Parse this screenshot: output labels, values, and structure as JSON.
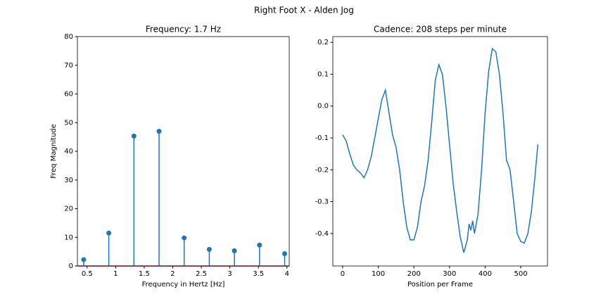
{
  "title": "Right Foot X - Alden Jog",
  "chart_data": [
    {
      "type": "stem",
      "title": "Frequency: 1.7 Hz",
      "xlabel": "Frequency in Hertz [Hz]",
      "ylabel": "Freq Magnitude",
      "x": [
        0.44,
        0.88,
        1.32,
        1.76,
        2.2,
        2.64,
        3.08,
        3.52,
        3.96
      ],
      "values": [
        2.2,
        11.5,
        45.3,
        47.0,
        9.8,
        5.8,
        5.3,
        7.3,
        4.3
      ],
      "color": "#1f77b4",
      "baseline_color": "#d62728",
      "xlim": [
        0.33,
        4.04
      ],
      "xticks": [
        0.5,
        1.0,
        1.5,
        2.0,
        2.5,
        3.0,
        3.5,
        4.0
      ],
      "ylim": [
        0,
        80
      ],
      "yticks": [
        0,
        10,
        20,
        30,
        40,
        50,
        60,
        70,
        80
      ]
    },
    {
      "type": "line",
      "title": "Cadence: 208 steps per minute",
      "xlabel": "Position per Frame",
      "x": [
        0,
        10,
        20,
        30,
        40,
        50,
        60,
        70,
        80,
        90,
        100,
        110,
        120,
        130,
        140,
        150,
        160,
        170,
        180,
        190,
        200,
        210,
        220,
        230,
        240,
        250,
        260,
        270,
        280,
        290,
        300,
        310,
        320,
        330,
        340,
        350,
        355,
        360,
        365,
        370,
        380,
        390,
        400,
        410,
        420,
        430,
        440,
        450,
        460,
        470,
        480,
        490,
        500,
        510,
        520,
        530,
        540,
        548
      ],
      "values": [
        -0.09,
        -0.11,
        -0.15,
        -0.185,
        -0.2,
        -0.21,
        -0.225,
        -0.2,
        -0.16,
        -0.1,
        -0.04,
        0.02,
        0.05,
        -0.02,
        -0.09,
        -0.13,
        -0.2,
        -0.3,
        -0.38,
        -0.42,
        -0.42,
        -0.38,
        -0.3,
        -0.25,
        -0.17,
        -0.05,
        0.08,
        0.13,
        0.1,
        0.0,
        -0.12,
        -0.24,
        -0.33,
        -0.41,
        -0.46,
        -0.42,
        -0.37,
        -0.39,
        -0.36,
        -0.4,
        -0.34,
        -0.2,
        -0.02,
        0.11,
        0.18,
        0.17,
        0.1,
        -0.02,
        -0.17,
        -0.2,
        -0.3,
        -0.4,
        -0.425,
        -0.43,
        -0.4,
        -0.33,
        -0.22,
        -0.12
      ],
      "color": "#1f77b4",
      "xlim": [
        -27.5,
        575
      ],
      "xticks": [
        0,
        100,
        200,
        300,
        400,
        500
      ],
      "ylim": [
        -0.502,
        0.218
      ],
      "yticks": [
        -0.4,
        -0.3,
        -0.2,
        -0.1,
        {
          "value": 0,
          "label": "0.0"
        },
        0.1,
        0.2
      ]
    }
  ]
}
